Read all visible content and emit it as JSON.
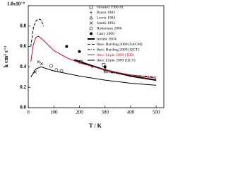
{
  "chart_data": {
    "type": "line",
    "xlabel": "T / K",
    "ylabel": "k cm³ s⁻¹",
    "xlim": [
      0,
      530
    ],
    "ylim": [
      0,
      1.0
    ],
    "xticks": [
      0,
      100,
      200,
      300,
      400,
      500
    ],
    "yticks": [
      {
        "value": 0.0,
        "label": "0.0"
      },
      {
        "value": 0.2,
        "label": "0.2"
      },
      {
        "value": 0.4,
        "label": "0.4"
      },
      {
        "value": 0.6,
        "label": "0.6"
      },
      {
        "value": 0.8,
        "label": "0.8"
      },
      {
        "value": 1.0,
        "label": "1.0x10⁻⁹"
      }
    ],
    "series": [
      {
        "name": "Howard 1980-81",
        "color": "#000000",
        "marker": "square-open",
        "x": [
          205,
          295
        ],
        "values": [
          0.45,
          0.42
        ]
      },
      {
        "name": "Bruce 1983",
        "color": "#000000",
        "marker": "cross",
        "x": [
          250,
          300
        ],
        "values": [
          0.4,
          0.35
        ]
      },
      {
        "name": "Lewis 1984",
        "color": "#000000",
        "marker": "triangle-open",
        "x": [
          300
        ],
        "values": [
          0.38
        ]
      },
      {
        "name": "Smith 1994",
        "color": "#000000",
        "marker": "x",
        "x": [
          27,
          40,
          52
        ],
        "values": [
          0.35,
          0.45,
          0.43
        ]
      },
      {
        "name": "Robertson 2006",
        "color": "#000000",
        "marker": "circle-open",
        "x": [
          90,
          110,
          130
        ],
        "values": [
          0.41,
          0.37,
          0.36
        ]
      },
      {
        "name": "Carty 2006",
        "color": "#000000",
        "marker": "circle",
        "x": [
          150,
          200,
          300
        ],
        "values": [
          0.6,
          0.55,
          0.4
        ]
      },
      {
        "name": "review 2004",
        "color": "#000000",
        "line": "thick",
        "x": [
          180,
          250,
          300,
          400,
          500
        ],
        "values": [
          0.47,
          0.41,
          0.37,
          0.31,
          0.27
        ]
      },
      {
        "name": "theo: Harding 2000 (SACM)",
        "color": "#000000",
        "line": "dashed",
        "x": [
          10,
          20,
          30,
          40,
          50,
          60
        ],
        "values": [
          0.6,
          0.78,
          0.85,
          0.87,
          0.86,
          0.8
        ]
      },
      {
        "name": "theo: Harding 2000 (QCT)",
        "color": "#000000",
        "line": "dashdot",
        "x": [
          300,
          400,
          500
        ],
        "values": [
          0.35,
          0.32,
          0.3
        ]
      },
      {
        "name": "theo: Lique 2009 (TID)",
        "color": "#e0001b",
        "line": "solid",
        "x": [
          10,
          20,
          30,
          40,
          60,
          100,
          150,
          200,
          300,
          400,
          500
        ],
        "values": [
          0.45,
          0.62,
          0.69,
          0.7,
          0.66,
          0.56,
          0.49,
          0.44,
          0.37,
          0.32,
          0.29
        ]
      },
      {
        "name": "theo: Lique 2009 (QCT)",
        "color": "#000000",
        "line": "solid",
        "x": [
          10,
          30,
          50,
          100,
          200,
          300,
          400,
          500
        ],
        "values": [
          0.3,
          0.38,
          0.4,
          0.36,
          0.31,
          0.27,
          0.24,
          0.22
        ]
      }
    ]
  }
}
